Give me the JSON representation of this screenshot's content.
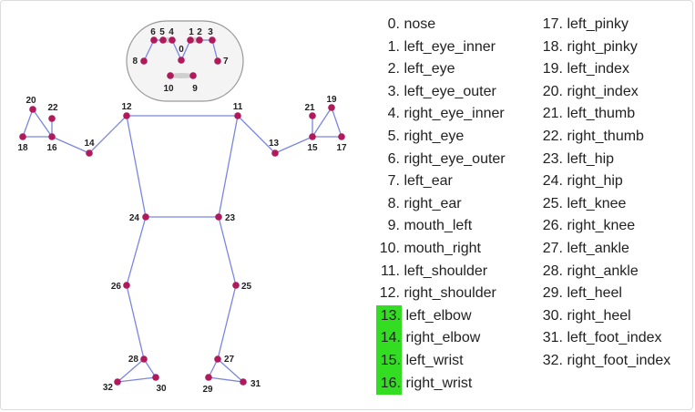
{
  "landmarks": [
    {
      "id": "0",
      "name": "nose",
      "highlight": false
    },
    {
      "id": "1",
      "name": "left_eye_inner",
      "highlight": false
    },
    {
      "id": "2",
      "name": "left_eye",
      "highlight": false
    },
    {
      "id": "3",
      "name": "left_eye_outer",
      "highlight": false
    },
    {
      "id": "4",
      "name": "right_eye_inner",
      "highlight": false
    },
    {
      "id": "5",
      "name": "right_eye",
      "highlight": false
    },
    {
      "id": "6",
      "name": "right_eye_outer",
      "highlight": false
    },
    {
      "id": "7",
      "name": "left_ear",
      "highlight": false
    },
    {
      "id": "8",
      "name": "right_ear",
      "highlight": false
    },
    {
      "id": "9",
      "name": "mouth_left",
      "highlight": false
    },
    {
      "id": "10",
      "name": "mouth_right",
      "highlight": false
    },
    {
      "id": "11",
      "name": "left_shoulder",
      "highlight": false
    },
    {
      "id": "12",
      "name": "right_shoulder",
      "highlight": false
    },
    {
      "id": "13",
      "name": "left_elbow",
      "highlight": true
    },
    {
      "id": "14",
      "name": "right_elbow",
      "highlight": true
    },
    {
      "id": "15",
      "name": "left_wrist",
      "highlight": true
    },
    {
      "id": "16",
      "name": "right_wrist",
      "highlight": true
    },
    {
      "id": "17",
      "name": "left_pinky",
      "highlight": false
    },
    {
      "id": "18",
      "name": "right_pinky",
      "highlight": false
    },
    {
      "id": "19",
      "name": "left_index",
      "highlight": false
    },
    {
      "id": "20",
      "name": "right_index",
      "highlight": false
    },
    {
      "id": "21",
      "name": "left_thumb",
      "highlight": false
    },
    {
      "id": "22",
      "name": "right_thumb",
      "highlight": false
    },
    {
      "id": "23",
      "name": "left_hip",
      "highlight": false
    },
    {
      "id": "24",
      "name": "right_hip",
      "highlight": false
    },
    {
      "id": "25",
      "name": "left_knee",
      "highlight": false
    },
    {
      "id": "26",
      "name": "right_knee",
      "highlight": false
    },
    {
      "id": "27",
      "name": "left_ankle",
      "highlight": false
    },
    {
      "id": "28",
      "name": "right_ankle",
      "highlight": false
    },
    {
      "id": "29",
      "name": "left_heel",
      "highlight": false
    },
    {
      "id": "30",
      "name": "right_heel",
      "highlight": false
    },
    {
      "id": "31",
      "name": "left_foot_index",
      "highlight": false
    },
    {
      "id": "32",
      "name": "right_foot_index",
      "highlight": false
    }
  ],
  "connections": [
    [
      "11",
      "12"
    ],
    [
      "11",
      "13"
    ],
    [
      "13",
      "15"
    ],
    [
      "15",
      "17"
    ],
    [
      "15",
      "19"
    ],
    [
      "15",
      "21"
    ],
    [
      "17",
      "19"
    ],
    [
      "12",
      "14"
    ],
    [
      "14",
      "16"
    ],
    [
      "16",
      "18"
    ],
    [
      "16",
      "20"
    ],
    [
      "16",
      "22"
    ],
    [
      "18",
      "20"
    ],
    [
      "11",
      "23"
    ],
    [
      "12",
      "24"
    ],
    [
      "23",
      "24"
    ],
    [
      "23",
      "25"
    ],
    [
      "24",
      "26"
    ],
    [
      "25",
      "27"
    ],
    [
      "26",
      "28"
    ],
    [
      "27",
      "29"
    ],
    [
      "28",
      "30"
    ],
    [
      "29",
      "31"
    ],
    [
      "30",
      "32"
    ],
    [
      "27",
      "31"
    ],
    [
      "28",
      "32"
    ],
    [
      "0",
      "1"
    ],
    [
      "1",
      "2"
    ],
    [
      "2",
      "3"
    ],
    [
      "3",
      "7"
    ],
    [
      "0",
      "4"
    ],
    [
      "4",
      "5"
    ],
    [
      "5",
      "6"
    ],
    [
      "6",
      "8"
    ],
    [
      "9",
      "10"
    ]
  ],
  "colors": {
    "joint": "#b0195a",
    "limb": "#7a86e0",
    "highlight": "#33dd22",
    "head_outline": "#999999"
  }
}
